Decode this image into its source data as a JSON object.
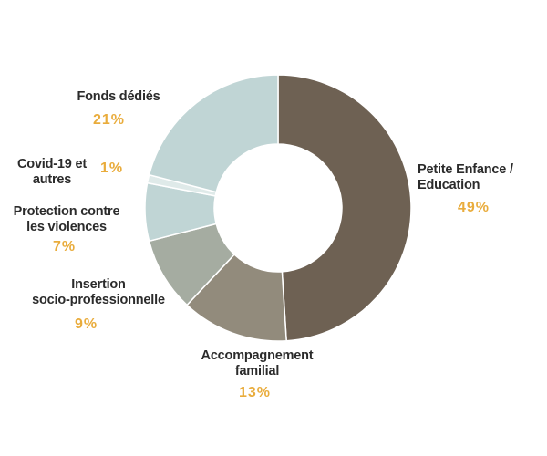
{
  "chart_data": {
    "type": "pie",
    "style": "donut",
    "title": "",
    "slices": [
      {
        "label": "Petite Enfance /\nEducation",
        "value": 49,
        "display": "49%",
        "color": "#6e6153"
      },
      {
        "label": "Accompagnement\nfamilial",
        "value": 13,
        "display": "13%",
        "color": "#928b7c"
      },
      {
        "label": "Insertion\nsocio-professionnelle",
        "value": 9,
        "display": "9%",
        "color": "#a5aca1"
      },
      {
        "label": "Protection contre\nles violences",
        "value": 7,
        "display": "7%",
        "color": "#c0d5d5"
      },
      {
        "label": "Covid-19 et\nautres",
        "value": 1,
        "display": "1%",
        "color": "#dfeae9"
      },
      {
        "label": "Fonds dédiés",
        "value": 21,
        "display": "21%",
        "color": "#c0d5d5"
      }
    ]
  }
}
